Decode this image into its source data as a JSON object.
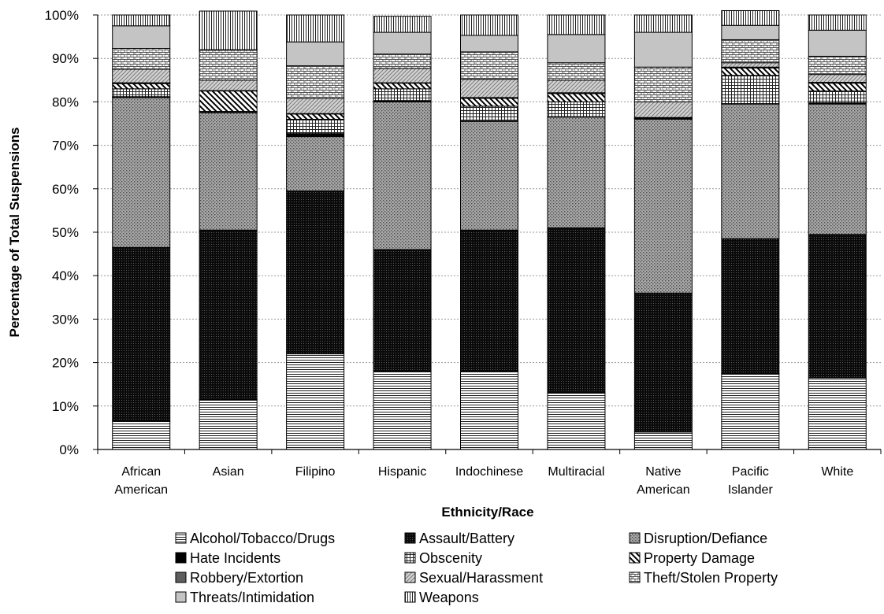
{
  "colors": {
    "background": "#ffffff",
    "gridline": "#9a9a9a",
    "segment_outline": "#000000"
  },
  "chart_data": {
    "type": "bar",
    "stacked": true,
    "title": "",
    "xlabel": "Ethnicity/Race",
    "ylabel": "Percentage of Total Suspensions",
    "ylim": [
      0,
      100
    ],
    "yticks": [
      0,
      10,
      20,
      30,
      40,
      50,
      60,
      70,
      80,
      90,
      100
    ],
    "ytick_format": "{v}%",
    "grid": "horizontal-dotted",
    "legend_position": "bottom",
    "categories": [
      [
        "African",
        "American"
      ],
      [
        "Asian"
      ],
      [
        "Filipino"
      ],
      [
        "Hispanic"
      ],
      [
        "Indochinese"
      ],
      [
        "Multiracial"
      ],
      [
        "Native",
        "American"
      ],
      [
        "Pacific",
        "Islander"
      ],
      [
        "White"
      ]
    ],
    "series": [
      {
        "name": "Alcohol/Tobacco/Drugs",
        "pattern": "hlines-fine",
        "values": [
          6.5,
          11.5,
          22,
          18,
          18,
          13,
          4,
          17.5,
          16.5
        ]
      },
      {
        "name": "Assault/Battery",
        "pattern": "dense-black",
        "values": [
          40,
          39,
          37.5,
          28,
          32.5,
          38,
          32,
          31,
          33
        ]
      },
      {
        "name": "Disruption/Defiance",
        "pattern": "dotted-gray",
        "values": [
          34.5,
          27,
          12.5,
          34,
          25,
          25.5,
          40,
          31,
          30
        ]
      },
      {
        "name": "Hate Incidents",
        "pattern": "solid-black",
        "values": [
          0.2,
          0.1,
          0.7,
          0.3,
          0.1,
          0.1,
          0.1,
          0.1,
          0.3
        ]
      },
      {
        "name": "Obscenity",
        "pattern": "grid",
        "values": [
          1.8,
          0.2,
          3.3,
          2.7,
          3.4,
          3.4,
          0.1,
          6.5,
          2.7
        ]
      },
      {
        "name": "Property Damage",
        "pattern": "diagonal",
        "values": [
          1.2,
          4.7,
          1.2,
          1.3,
          1.8,
          1.9,
          0.1,
          1.7,
          1.8
        ]
      },
      {
        "name": "Robbery/Extortion",
        "pattern": "solid-dark-gray",
        "values": [
          0.2,
          0.1,
          0.1,
          0.1,
          0.2,
          0.2,
          0.1,
          0.2,
          0.2
        ]
      },
      {
        "name": "Sexual/Harassment",
        "pattern": "light-diagonal",
        "values": [
          3.1,
          2.4,
          3.5,
          3.3,
          4.2,
          2.9,
          3.6,
          1.0,
          1.8
        ]
      },
      {
        "name": "Theft/Stolen Property",
        "pattern": "brick",
        "values": [
          4.8,
          6.9,
          7.5,
          3.3,
          6.3,
          4.0,
          8.0,
          5.3,
          4.2
        ]
      },
      {
        "name": "Threats/Intimidation",
        "pattern": "solid-light-gray",
        "values": [
          5.2,
          0.1,
          5.5,
          5.0,
          3.8,
          6.5,
          8.0,
          3.3,
          6.0
        ]
      },
      {
        "name": "Weapons",
        "pattern": "vlines",
        "values": [
          2.5,
          8.9,
          6.2,
          3.7,
          4.7,
          4.5,
          4.0,
          3.4,
          3.5
        ]
      }
    ]
  }
}
